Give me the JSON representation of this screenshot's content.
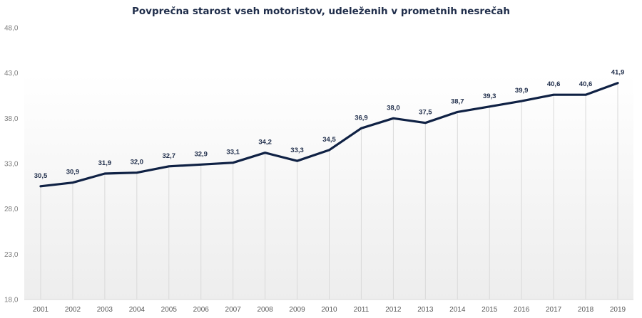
{
  "chart_data": {
    "type": "line",
    "title": "Povprečna starost vseh motoristov, udeleženih v prometnih nesrečah",
    "xlabel": "",
    "ylabel": "",
    "categories": [
      "2001",
      "2002",
      "2003",
      "2004",
      "2005",
      "2006",
      "2007",
      "2008",
      "2009",
      "2010",
      "2011",
      "2012",
      "2013",
      "2014",
      "2015",
      "2016",
      "2017",
      "2018",
      "2019"
    ],
    "series": [
      {
        "name": "Povprečna starost",
        "values": [
          30.5,
          30.9,
          31.9,
          32.0,
          32.7,
          32.9,
          33.1,
          34.2,
          33.3,
          34.5,
          36.9,
          38.0,
          37.5,
          38.7,
          39.3,
          39.9,
          40.6,
          40.6,
          41.9
        ],
        "labels": [
          "30,5",
          "30,9",
          "31,9",
          "32,0",
          "32,7",
          "32,9",
          "33,1",
          "34,2",
          "33,3",
          "34,5",
          "36,9",
          "38,0",
          "37,5",
          "38,7",
          "39,3",
          "39,9",
          "40,6",
          "40,6",
          "41,9"
        ],
        "color": "#0f2144"
      }
    ],
    "yticks": [
      18,
      23,
      28,
      33,
      38,
      43,
      48
    ],
    "ytick_labels": [
      "18,0",
      "23,0",
      "28,0",
      "33,0",
      "38,0",
      "43,0",
      "48,0"
    ],
    "ylim": [
      18,
      48
    ],
    "grid": false,
    "drop_lines": true,
    "legend": "none"
  },
  "colors": {
    "line": "#0f2144",
    "drop_line": "#d9d9d9",
    "axis": "#d9d9d9",
    "title": "#1f2d4a"
  }
}
